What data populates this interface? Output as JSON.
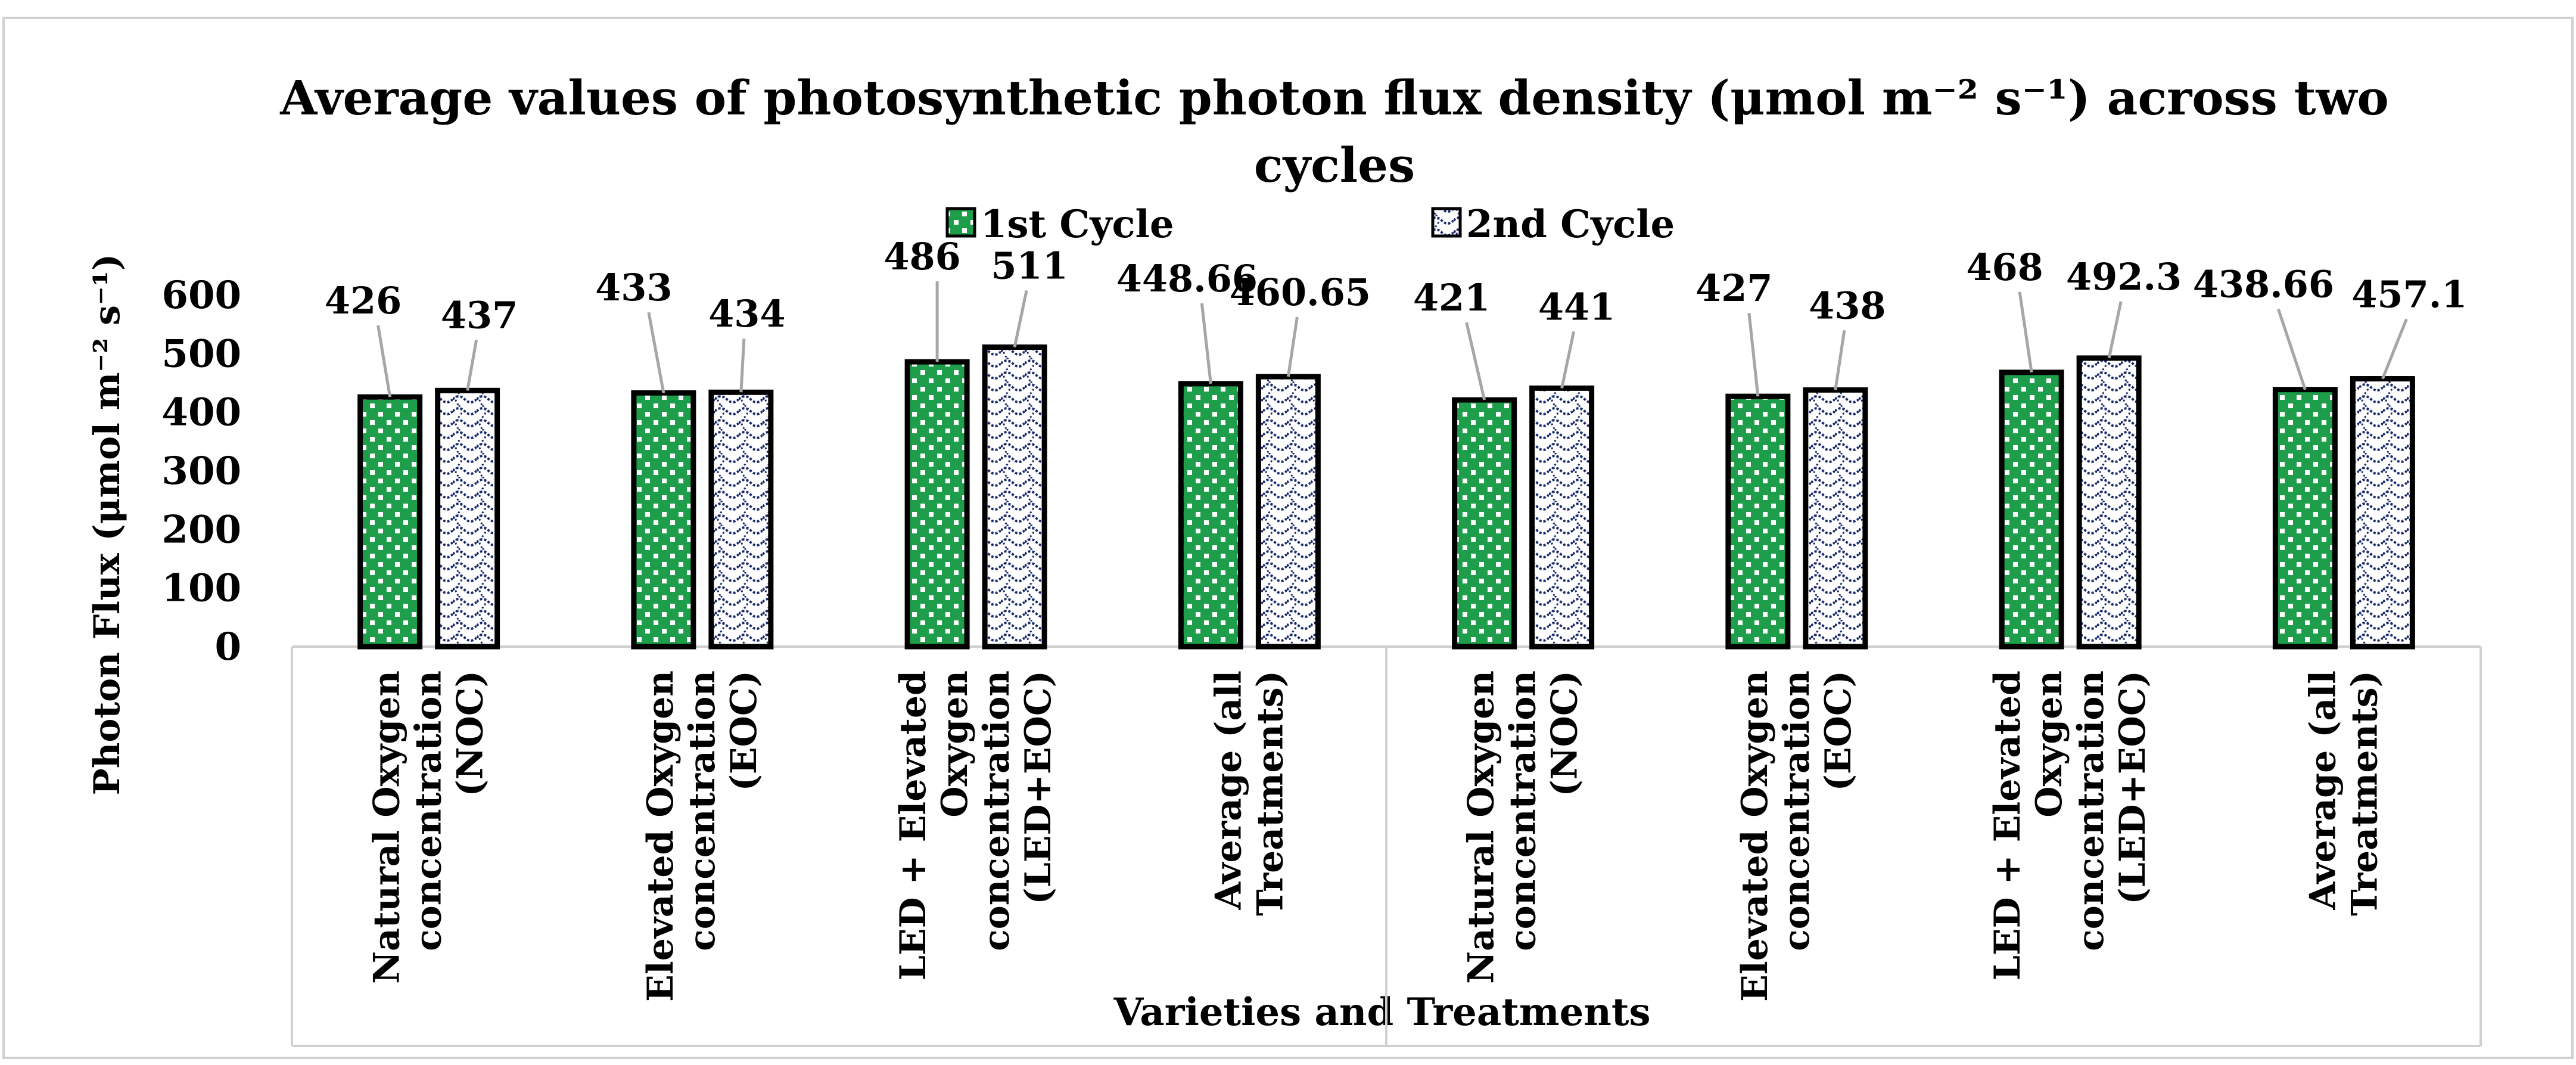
{
  "chart_data": {
    "type": "bar",
    "title": "Average values of photosynthetic photon flux density (μmol m⁻² s⁻¹) across two cycles",
    "title_lines": [
      "Average values of photosynthetic photon flux density (μmol m⁻² s⁻¹) across two",
      "cycles"
    ],
    "ylabel": "Photon Flux (μmol m⁻² s⁻¹)",
    "xlabel": "Varieties and Treatments",
    "ylim": [
      0,
      600
    ],
    "yticks": [
      "0",
      "100",
      "200",
      "300",
      "400",
      "500",
      "600"
    ],
    "grid": false,
    "legend_position": "top-center",
    "categories": [
      "Natural Oxygen concentration (NOC)",
      "Elevated Oxygen concentration (EOC)",
      "LED + Elevated Oxygen concentration (LED+EOC)",
      "Average (all Treatments)",
      "Natural Oxygen concentration (NOC)",
      "Elevated Oxygen concentration (EOC)",
      "LED + Elevated Oxygen concentration (LED+EOC)",
      "Average (all Treatments)"
    ],
    "category_lines": [
      [
        "Natural Oxygen",
        "concentration",
        "(NOC)"
      ],
      [
        "Elevated Oxygen",
        "concentration",
        "(EOC)"
      ],
      [
        "LED + Elevated",
        "Oxygen",
        "concentration",
        "(LED+EOC)"
      ],
      [
        "Average (all",
        "Treatments)"
      ],
      [
        "Natural Oxygen",
        "concentration",
        "(NOC)"
      ],
      [
        "Elevated Oxygen",
        "concentration",
        "(EOC)"
      ],
      [
        "LED + Elevated",
        "Oxygen",
        "concentration",
        "(LED+EOC)"
      ],
      [
        "Average (all",
        "Treatments)"
      ]
    ],
    "series": [
      {
        "name": "1st Cycle",
        "values": [
          426,
          433,
          486,
          448.66,
          421,
          427,
          468,
          438.66
        ],
        "labels": [
          "426",
          "433",
          "486",
          "448.66",
          "421",
          "427",
          "468",
          "438.66"
        ],
        "color": "#1e9e4a"
      },
      {
        "name": "2nd Cycle",
        "values": [
          437,
          434,
          511,
          460.65,
          441,
          438,
          492.3,
          457.1
        ],
        "labels": [
          "437",
          "434",
          "511",
          "460.65",
          "441",
          "438",
          "492.3",
          "457.1"
        ],
        "color": "#1a2a6c"
      }
    ]
  }
}
